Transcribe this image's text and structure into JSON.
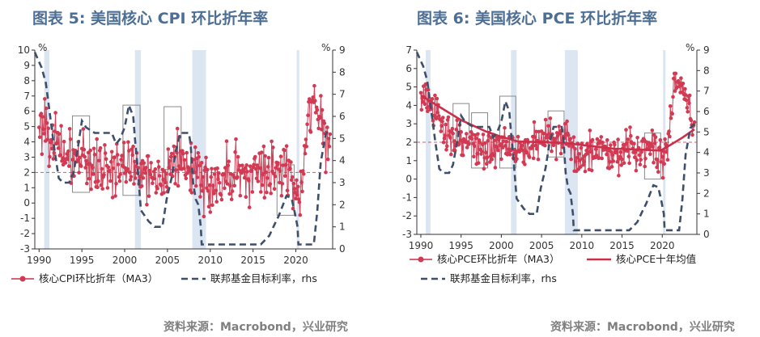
{
  "chart_data": [
    {
      "type": "line",
      "title": "图表 5:  美国核心 CPI 环比折年率",
      "source": "资料来源：Macrobond，兴业研究",
      "y_unit_left": "%",
      "y_unit_right": "%",
      "ylim_left": [
        -3,
        10
      ],
      "ylim_right": [
        0,
        9
      ],
      "yticks_left": [
        "10",
        "9",
        "8",
        "7",
        "6",
        "5",
        "4",
        "3",
        "2",
        "1",
        "0",
        "-1",
        "-2",
        "-3"
      ],
      "yticks_right": [
        "9",
        "8",
        "7",
        "6",
        "5",
        "4",
        "3",
        "2",
        "1",
        "0"
      ],
      "xlim": [
        1989.5,
        2024.3
      ],
      "xticks": [
        "1990",
        "1995",
        "2000",
        "2005",
        "2010",
        "2015",
        "2020"
      ],
      "reference_line_left": 2,
      "recessions": [
        [
          1990.6,
          1991.2
        ],
        [
          2001.2,
          2001.9
        ],
        [
          2007.9,
          2009.5
        ],
        [
          2020.1,
          2020.4
        ]
      ],
      "highlight_boxes": [
        [
          1993.9,
          1995.9,
          0.7,
          5.7
        ],
        [
          1999.8,
          2001.8,
          0.5,
          6.4
        ],
        [
          2004.6,
          2006.6,
          2.2,
          6.3
        ],
        [
          2017.8,
          2019.8,
          -0.8,
          2.5
        ]
      ],
      "series": [
        {
          "name": "核心CPI环比折年（MA3）",
          "axis": "left",
          "x": [
            1990,
            1990.5,
            1991,
            1991.5,
            1992,
            1993,
            1994,
            1995,
            1996,
            1997,
            1998,
            1999,
            2000,
            2001,
            2002,
            2003,
            2004,
            2005,
            2006,
            2007,
            2008,
            2009,
            2010,
            2011,
            2012,
            2013,
            2014,
            2015,
            2016,
            2017,
            2018,
            2019,
            2020,
            2020.6,
            2021,
            2021.5,
            2022,
            2022.5,
            2023,
            2023.5,
            2024
          ],
          "values": [
            4.6,
            5.6,
            5.0,
            4.2,
            3.6,
            3.2,
            2.9,
            3.0,
            2.6,
            2.4,
            2.3,
            2.1,
            2.5,
            2.6,
            2.3,
            1.5,
            1.9,
            2.2,
            2.7,
            2.4,
            2.3,
            1.6,
            0.9,
            1.5,
            2.2,
            1.8,
            1.8,
            1.9,
            2.2,
            1.8,
            2.1,
            2.2,
            1.5,
            0.5,
            3.2,
            5.8,
            6.3,
            6.6,
            5.2,
            4.3,
            3.3
          ]
        },
        {
          "name": "联邦基金目标利率，rhs",
          "axis": "right",
          "x": [
            1989.5,
            1990.3,
            1990.8,
            1991.3,
            1991.8,
            1992.3,
            1992.8,
            1993.5,
            1994.0,
            1994.5,
            1995.0,
            1995.5,
            1996.5,
            1998.5,
            1999.0,
            1999.5,
            2000.0,
            2000.5,
            2001.0,
            2001.2,
            2001.5,
            2001.9,
            2002.8,
            2003.5,
            2004.4,
            2004.9,
            2005.5,
            2006.0,
            2006.5,
            2007.5,
            2007.7,
            2008.0,
            2008.3,
            2008.6,
            2008.9,
            2009.0,
            2015.9,
            2016.9,
            2017.5,
            2018.0,
            2018.5,
            2018.9,
            2019.5,
            2019.9,
            2020.2,
            2020.3,
            2022.1,
            2022.5,
            2022.9,
            2023.5,
            2024.0
          ],
          "values": [
            8.9,
            8.2,
            7.5,
            6.0,
            4.5,
            3.2,
            3.0,
            3.0,
            3.4,
            4.5,
            5.8,
            5.5,
            5.25,
            5.25,
            4.75,
            5.0,
            5.5,
            6.5,
            6.0,
            5.0,
            3.75,
            1.75,
            1.25,
            1.0,
            1.0,
            2.25,
            3.25,
            4.5,
            5.25,
            5.25,
            4.75,
            3.0,
            2.25,
            2.0,
            1.0,
            0.2,
            0.2,
            0.6,
            1.1,
            1.5,
            2.0,
            2.4,
            2.3,
            1.6,
            1.0,
            0.2,
            0.2,
            1.7,
            3.9,
            5.2,
            5.4
          ]
        }
      ]
    },
    {
      "type": "line",
      "title": "图表 6:  美国核心 PCE 环比折年率",
      "source": "资料来源：Macrobond，兴业研究",
      "y_unit_right": "%",
      "ylim_left": [
        -3,
        7
      ],
      "ylim_right": [
        0,
        9
      ],
      "yticks_left": [
        "7",
        "6",
        "5",
        "4",
        "3",
        "2",
        "1",
        "0",
        "-1",
        "-2",
        "-3"
      ],
      "yticks_right": [
        "9",
        "8",
        "7",
        "6",
        "5",
        "4",
        "3",
        "2",
        "1",
        "0"
      ],
      "xlim": [
        1989.5,
        2024.3
      ],
      "xticks": [
        "1990",
        "1995",
        "2000",
        "2005",
        "2010",
        "2015",
        "2020"
      ],
      "reference_line_left": 2,
      "recessions": [
        [
          1990.6,
          1991.2
        ],
        [
          2001.2,
          2001.9
        ],
        [
          2007.9,
          2009.5
        ],
        [
          2020.1,
          2020.4
        ]
      ],
      "highlight_boxes": [
        [
          1994.0,
          1996.0,
          2.0,
          4.1
        ],
        [
          1996.3,
          1998.3,
          0.6,
          3.6
        ],
        [
          1999.8,
          2001.8,
          0.6,
          4.5
        ],
        [
          2005.8,
          2007.8,
          1.2,
          3.7
        ],
        [
          2017.8,
          2019.8,
          0.0,
          2.5
        ]
      ],
      "series": [
        {
          "name": "核心PCE环比折年（MA3）",
          "axis": "left",
          "x": [
            1990,
            1990.5,
            1991,
            1992,
            1993,
            1994,
            1995,
            1996,
            1997,
            1998,
            1999,
            2000,
            2001,
            2002,
            2003,
            2004,
            2005,
            2006,
            2007,
            2008,
            2009,
            2010,
            2011,
            2012,
            2013,
            2014,
            2015,
            2016,
            2017,
            2018,
            2019,
            2020,
            2020.6,
            2021,
            2021.5,
            2022,
            2022.5,
            2023,
            2023.5,
            2024
          ],
          "values": [
            4.3,
            4.6,
            3.9,
            3.4,
            2.6,
            2.4,
            2.2,
            1.9,
            1.8,
            1.5,
            1.6,
            1.9,
            2.1,
            1.7,
            1.5,
            2.0,
            2.2,
            2.3,
            2.3,
            2.2,
            1.3,
            1.2,
            1.6,
            1.8,
            1.5,
            1.6,
            1.4,
            1.8,
            1.6,
            2.0,
            1.7,
            1.0,
            1.5,
            3.0,
            5.2,
            5.3,
            4.9,
            4.5,
            3.3,
            2.5
          ]
        },
        {
          "name": "核心PCE十年均值",
          "axis": "left",
          "x": [
            1990,
            1992,
            1995,
            1998,
            2000,
            2002,
            2005,
            2008,
            2011,
            2014,
            2017,
            2019.8,
            2021,
            2022.5,
            2024
          ],
          "values": [
            4.55,
            4.0,
            3.2,
            2.6,
            2.3,
            2.05,
            2.0,
            1.95,
            1.8,
            1.65,
            1.6,
            1.55,
            1.85,
            2.25,
            2.7
          ]
        },
        {
          "name": "联邦基金目标利率，rhs",
          "axis": "right",
          "x": [
            1989.5,
            1990.3,
            1990.8,
            1991.3,
            1991.8,
            1992.3,
            1992.8,
            1993.5,
            1994.0,
            1994.5,
            1995.0,
            1995.5,
            1996.5,
            1998.5,
            1999.0,
            1999.5,
            2000.0,
            2000.5,
            2001.0,
            2001.2,
            2001.5,
            2001.9,
            2002.8,
            2003.5,
            2004.4,
            2004.9,
            2005.5,
            2006.0,
            2006.5,
            2007.5,
            2007.7,
            2008.0,
            2008.3,
            2008.6,
            2008.9,
            2009.0,
            2015.9,
            2016.9,
            2017.5,
            2018.0,
            2018.5,
            2018.9,
            2019.5,
            2019.9,
            2020.2,
            2020.3,
            2022.1,
            2022.5,
            2022.9,
            2023.5,
            2024.0
          ],
          "values": [
            8.9,
            8.2,
            7.5,
            6.0,
            4.5,
            3.2,
            3.0,
            3.0,
            3.4,
            4.5,
            5.8,
            5.5,
            5.25,
            5.25,
            4.75,
            5.0,
            5.5,
            6.5,
            6.0,
            5.0,
            3.75,
            1.75,
            1.25,
            1.0,
            1.0,
            2.25,
            3.25,
            4.5,
            5.25,
            5.25,
            4.75,
            3.0,
            2.25,
            2.0,
            1.0,
            0.2,
            0.2,
            0.6,
            1.1,
            1.5,
            2.0,
            2.4,
            2.3,
            1.6,
            1.0,
            0.2,
            0.2,
            1.7,
            3.9,
            5.2,
            5.4
          ]
        }
      ]
    }
  ]
}
